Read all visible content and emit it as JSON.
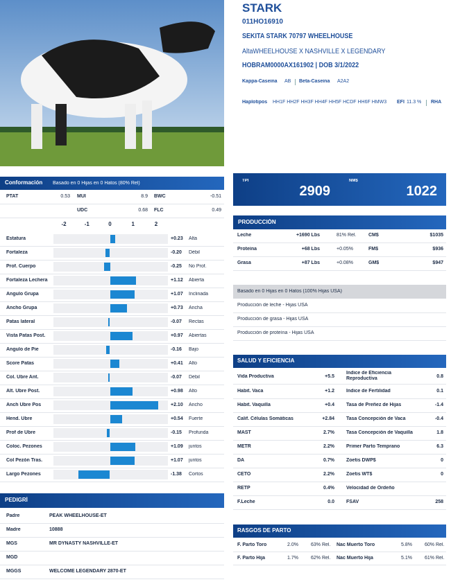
{
  "header": {
    "name": "STARK",
    "code": "011HO16910",
    "full_name": "SEKITA STARK 70797 WHEELHOUSE",
    "pedigree_line": "AltaWHEELHOUSE X NASHVILLE X LEGENDARY",
    "registration": "HOBRAM0000AX161902 | DOB 3/1/2022",
    "kappa_label": "Kappa-Caseina",
    "kappa": "AB",
    "beta_label": "Beta-Caseina",
    "beta": "A2A2",
    "haplo_label": "Haplotipos",
    "haplotypes": "HH1F HH2F HH3F HH4F HH5F HCDF HH6F HMW3",
    "efi_label": "EFI",
    "efi": "11.3 %",
    "rha": "RHA"
  },
  "conformation": {
    "title": "Conformación",
    "subtitle": "Basado en 0 Hijas en 0 Hatos (80% Rel)",
    "summary": [
      {
        "label": "PTAT",
        "value": "0.53"
      },
      {
        "label": "MUI",
        "value": "8.9"
      },
      {
        "label": "BWC",
        "value": "-0.51"
      },
      {
        "label": "UDC",
        "value": "0.68"
      },
      {
        "label": "FLC",
        "value": "0.49"
      }
    ],
    "scale": [
      -2,
      -1,
      0,
      1,
      2
    ],
    "traits": [
      {
        "name": "Estatura",
        "value": 0.23,
        "label": "+0.23",
        "desc": "Alta"
      },
      {
        "name": "Fortaleza",
        "value": -0.2,
        "label": "-0.20",
        "desc": "Débil"
      },
      {
        "name": "Prof. Cuerpo",
        "value": -0.25,
        "label": "-0.25",
        "desc": "No Prof."
      },
      {
        "name": "Fortaleza Lechera",
        "value": 1.12,
        "label": "+1.12",
        "desc": "Abierta"
      },
      {
        "name": "Angulo Grupa",
        "value": 1.07,
        "label": "+1.07",
        "desc": "Inclinada"
      },
      {
        "name": "Ancho Grupa",
        "value": 0.73,
        "label": "+0.73",
        "desc": "Ancha"
      },
      {
        "name": "Patas lateral",
        "value": -0.07,
        "label": "-0.07",
        "desc": "Rectas"
      },
      {
        "name": "Vista Patas Post.",
        "value": 0.97,
        "label": "+0.97",
        "desc": "Abiertas"
      },
      {
        "name": "Angulo de Pie",
        "value": -0.16,
        "label": "-0.16",
        "desc": "Bajo"
      },
      {
        "name": "Score Patas",
        "value": 0.41,
        "label": "+0.41",
        "desc": "Alto"
      },
      {
        "name": "Col. Ubre Ant.",
        "value": -0.07,
        "label": "-0.07",
        "desc": "Débil"
      },
      {
        "name": "Alt. Ubre Post.",
        "value": 0.98,
        "label": "+0.98",
        "desc": "Alto"
      },
      {
        "name": "Anch Ubre Pos",
        "value": 2.1,
        "label": "+2.10",
        "desc": "Ancho"
      },
      {
        "name": "Hend. Ubre",
        "value": 0.54,
        "label": "+0.54",
        "desc": "Fuerte"
      },
      {
        "name": "Prof de Ubre",
        "value": -0.15,
        "label": "-0.15",
        "desc": "Profunda"
      },
      {
        "name": "Coloc. Pezones",
        "value": 1.09,
        "label": "+1.09",
        "desc": "juntos"
      },
      {
        "name": "Col Pezón Tras.",
        "value": 1.07,
        "label": "+1.07",
        "desc": "juntos"
      },
      {
        "name": "Largo Pezones",
        "value": -1.38,
        "label": "-1.38",
        "desc": "Cortos"
      }
    ]
  },
  "pedigree": {
    "title": "PEDIGRÍ",
    "rows": [
      [
        "Padre",
        "PEAK WHEELHOUSE-ET"
      ],
      [
        "Madre",
        "10888"
      ],
      [
        "MGS",
        "MR DYNASTY NASHVILLE-ET"
      ],
      [
        "MGD",
        ""
      ],
      [
        "MGGS",
        "WELCOME LEGENDARY 2870-ET"
      ]
    ]
  },
  "indexes": {
    "tpi_label": "TPI",
    "tpi": "2909",
    "nm_label": "NM$",
    "nm": "1022"
  },
  "production": {
    "title": "PRODUCCIÓN",
    "rows": [
      [
        "Leche",
        "+1690 Lbs",
        "81% Rel.",
        "CM$",
        "$1035"
      ],
      [
        "Proteína",
        "+68 Lbs",
        "+0.05%",
        "FM$",
        "$936"
      ],
      [
        "Grasa",
        "+87 Lbs",
        "+0.08%",
        "GM$",
        "$947"
      ]
    ],
    "basis": "Basado en 0 Hijas en 0 Hatos (100% Hijas USA)",
    "notes": [
      "Producción de leche - Hijas USA",
      "Producción de grasa - Hijas USA",
      "Producción de proteína - Hijas USA"
    ]
  },
  "health": {
    "title": "SALUD Y EFICIENCIA",
    "rows": [
      [
        "Vida Productiva",
        "+5.5",
        "Indice de Eficiencia Reproductiva",
        "0.8"
      ],
      [
        "Habit. Vaca",
        "+1.2",
        "Indice de Fertilidad",
        "0.1"
      ],
      [
        "Habit. Vaquilla",
        "+0.4",
        "Tasa de Preñez de Hijas",
        "-1.4"
      ],
      [
        "Calif. Células Somáticas",
        "+2.84",
        "Tasa Concepción de Vaca",
        "-0.4"
      ],
      [
        "MAST",
        "2.7%",
        "Tasa Concepción de Vaquilla",
        "1.8"
      ],
      [
        "METR",
        "2.2%",
        "Primer Parto Temprano",
        "6.3"
      ],
      [
        "DA",
        "0.7%",
        "Zoetis DWP$",
        "0"
      ],
      [
        "CETO",
        "2.2%",
        "Zoetis WT$",
        "0"
      ],
      [
        "RETP",
        "0.4%",
        "Velocidad de Ordeño",
        ""
      ],
      [
        "F.Leche",
        "0.0",
        "FSAV",
        "258"
      ]
    ]
  },
  "calving": {
    "title": "RASGOS DE PARTO",
    "rows": [
      [
        "F. Parto Toro",
        "2.0%",
        "63% Rel.",
        "Nac Muerto Toro",
        "5.8%",
        "60% Rel."
      ],
      [
        "F. Parto Hija",
        "1.7%",
        "62% Rel.",
        "Nac Muerto Hija",
        "5.1%",
        "61% Rel."
      ]
    ]
  }
}
